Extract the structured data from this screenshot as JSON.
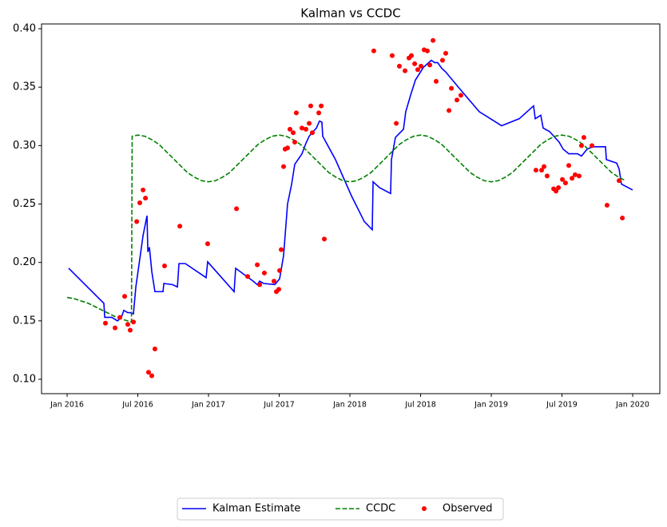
{
  "chart_data": {
    "type": "line",
    "title": "Kalman vs CCDC",
    "xlim": [
      2015.819,
      2020.192
    ],
    "ylim": [
      0.0877,
      0.4041
    ],
    "xticks": [
      {
        "value": 2016.0,
        "label": "Jan 2016"
      },
      {
        "value": 2016.5,
        "label": "Jul 2016"
      },
      {
        "value": 2017.0,
        "label": "Jan 2017"
      },
      {
        "value": 2017.5,
        "label": "Jul 2017"
      },
      {
        "value": 2018.0,
        "label": "Jan 2018"
      },
      {
        "value": 2018.5,
        "label": "Jul 2018"
      },
      {
        "value": 2019.0,
        "label": "Jan 2019"
      },
      {
        "value": 2019.5,
        "label": "Jul 2019"
      },
      {
        "value": 2020.0,
        "label": "Jan 2020"
      }
    ],
    "yticks": [
      {
        "value": 0.1,
        "label": "0.10"
      },
      0.15,
      {
        "value": 0.2,
        "label": "0.20"
      },
      0.25,
      {
        "value": 0.3,
        "label": "0.30"
      },
      0.35,
      {
        "value": 0.4,
        "label": "0.40"
      }
    ],
    "grid": false,
    "legend": "below",
    "series": [
      {
        "name": "Kalman Estimate",
        "kind": "line",
        "dash": "solid",
        "color": "#0000ff",
        "x": [
          2016.011,
          2016.26,
          2016.266,
          2016.316,
          2016.356,
          2016.384,
          2016.401,
          2016.429,
          2016.446,
          2016.469,
          2016.486,
          2016.514,
          2016.537,
          2016.565,
          2016.571,
          2016.582,
          2016.599,
          2016.621,
          2016.678,
          2016.684,
          2016.746,
          2016.78,
          2016.791,
          2016.836,
          2016.983,
          2016.994,
          2017.181,
          2017.192,
          2017.316,
          2017.345,
          2017.362,
          2017.39,
          2017.469,
          2017.503,
          2017.531,
          2017.559,
          2017.588,
          2017.61,
          2017.661,
          2017.689,
          2017.712,
          2017.74,
          2017.763,
          2017.785,
          2017.802,
          2017.808,
          2017.898,
          2018.011,
          2018.102,
          2018.158,
          2018.164,
          2018.209,
          2018.288,
          2018.294,
          2018.322,
          2018.379,
          2018.395,
          2018.429,
          2018.463,
          2018.52,
          2018.576,
          2018.599,
          2018.621,
          2018.65,
          2018.678,
          2018.774,
          2018.915,
          2019.073,
          2019.198,
          2019.299,
          2019.311,
          2019.35,
          2019.367,
          2019.412,
          2019.48,
          2019.508,
          2019.548,
          2019.61,
          2019.638,
          2019.678,
          2019.718,
          2019.808,
          2019.814,
          2019.887,
          2019.904,
          2019.921,
          2020.0
        ],
        "values": [
          0.195,
          0.165,
          0.153,
          0.153,
          0.15,
          0.153,
          0.159,
          0.157,
          0.157,
          0.156,
          0.179,
          0.203,
          0.223,
          0.24,
          0.209,
          0.213,
          0.192,
          0.175,
          0.175,
          0.182,
          0.181,
          0.179,
          0.199,
          0.199,
          0.187,
          0.2005,
          0.175,
          0.195,
          0.184,
          0.181,
          0.184,
          0.182,
          0.181,
          0.186,
          0.206,
          0.25,
          0.267,
          0.284,
          0.293,
          0.302,
          0.308,
          0.312,
          0.315,
          0.321,
          0.32,
          0.308,
          0.288,
          0.257,
          0.235,
          0.228,
          0.269,
          0.264,
          0.259,
          0.288,
          0.307,
          0.314,
          0.329,
          0.343,
          0.356,
          0.367,
          0.373,
          0.371,
          0.371,
          0.366,
          0.363,
          0.349,
          0.329,
          0.317,
          0.323,
          0.334,
          0.323,
          0.326,
          0.315,
          0.312,
          0.303,
          0.297,
          0.293,
          0.293,
          0.291,
          0.297,
          0.299,
          0.299,
          0.288,
          0.285,
          0.28,
          0.267,
          0.262
        ]
      },
      {
        "name": "CCDC",
        "kind": "line",
        "dash": "dashed",
        "color": "#008000",
        "x": [
          2016.0,
          2016.05,
          2016.1,
          2016.15,
          2016.2,
          2016.25,
          2016.3,
          2016.35,
          2016.4,
          2016.455,
          2016.46,
          2016.5,
          2016.55,
          2016.6,
          2016.65,
          2016.7,
          2016.75,
          2016.8,
          2016.85,
          2016.9,
          2016.95,
          2017.0,
          2017.05,
          2017.1,
          2017.15,
          2017.2,
          2017.25,
          2017.3,
          2017.35,
          2017.4,
          2017.45,
          2017.5,
          2017.55,
          2017.6,
          2017.65,
          2017.7,
          2017.75,
          2017.8,
          2017.85,
          2017.9,
          2017.95,
          2018.0,
          2018.05,
          2018.1,
          2018.15,
          2018.2,
          2018.25,
          2018.3,
          2018.35,
          2018.4,
          2018.45,
          2018.5,
          2018.55,
          2018.6,
          2018.65,
          2018.7,
          2018.75,
          2018.8,
          2018.85,
          2018.9,
          2018.95,
          2019.0,
          2019.05,
          2019.1,
          2019.15,
          2019.2,
          2019.25,
          2019.3,
          2019.35,
          2019.4,
          2019.45,
          2019.5,
          2019.55,
          2019.6,
          2019.65,
          2019.7,
          2019.75,
          2019.8,
          2019.85,
          2019.9,
          2019.95
        ],
        "values": [
          0.17,
          0.169,
          0.167,
          0.165,
          0.162,
          0.159,
          0.156,
          0.153,
          0.151,
          0.149,
          0.308,
          0.309,
          0.308,
          0.305,
          0.301,
          0.295,
          0.289,
          0.283,
          0.277,
          0.273,
          0.27,
          0.269,
          0.27,
          0.273,
          0.277,
          0.283,
          0.289,
          0.295,
          0.301,
          0.305,
          0.308,
          0.309,
          0.308,
          0.305,
          0.301,
          0.295,
          0.289,
          0.283,
          0.277,
          0.273,
          0.27,
          0.269,
          0.27,
          0.273,
          0.277,
          0.283,
          0.289,
          0.295,
          0.301,
          0.305,
          0.308,
          0.309,
          0.308,
          0.305,
          0.301,
          0.295,
          0.289,
          0.283,
          0.277,
          0.273,
          0.27,
          0.269,
          0.27,
          0.273,
          0.277,
          0.283,
          0.289,
          0.295,
          0.301,
          0.305,
          0.308,
          0.309,
          0.308,
          0.305,
          0.301,
          0.295,
          0.289,
          0.283,
          0.277,
          0.273,
          0.27
        ]
      },
      {
        "name": "Observed",
        "kind": "scatter",
        "color": "#ff0000",
        "x": [
          2016.271,
          2016.339,
          2016.373,
          2016.407,
          2016.429,
          2016.446,
          2016.469,
          2016.492,
          2016.514,
          2016.537,
          2016.554,
          2016.576,
          2016.599,
          2016.621,
          2016.689,
          2016.797,
          2016.994,
          2017.198,
          2017.277,
          2017.345,
          2017.362,
          2017.395,
          2017.463,
          2017.48,
          2017.497,
          2017.503,
          2017.514,
          2017.531,
          2017.542,
          2017.559,
          2017.576,
          2017.599,
          2017.61,
          2017.621,
          2017.661,
          2017.689,
          2017.712,
          2017.723,
          2017.734,
          2017.78,
          2017.797,
          2017.819,
          2018.169,
          2018.299,
          2018.328,
          2018.35,
          2018.39,
          2018.418,
          2018.435,
          2018.458,
          2018.48,
          2018.503,
          2018.525,
          2018.548,
          2018.565,
          2018.588,
          2018.61,
          2018.655,
          2018.678,
          2018.701,
          2018.718,
          2018.757,
          2018.785,
          2019.316,
          2019.356,
          2019.373,
          2019.395,
          2019.441,
          2019.458,
          2019.475,
          2019.503,
          2019.525,
          2019.548,
          2019.571,
          2019.593,
          2019.621,
          2019.638,
          2019.655,
          2019.712,
          2019.819,
          2019.904,
          2019.927
        ],
        "values": [
          0.148,
          0.144,
          0.153,
          0.171,
          0.147,
          0.142,
          0.149,
          0.235,
          0.251,
          0.262,
          0.255,
          0.106,
          0.103,
          0.126,
          0.197,
          0.231,
          0.216,
          0.246,
          0.188,
          0.198,
          0.181,
          0.191,
          0.184,
          0.175,
          0.177,
          0.193,
          0.211,
          0.282,
          0.297,
          0.298,
          0.314,
          0.311,
          0.303,
          0.328,
          0.315,
          0.314,
          0.319,
          0.334,
          0.311,
          0.328,
          0.334,
          0.22,
          0.381,
          0.377,
          0.319,
          0.368,
          0.364,
          0.375,
          0.377,
          0.37,
          0.365,
          0.368,
          0.382,
          0.381,
          0.369,
          0.39,
          0.355,
          0.373,
          0.379,
          0.33,
          0.349,
          0.339,
          0.343,
          0.279,
          0.279,
          0.282,
          0.274,
          0.263,
          0.261,
          0.264,
          0.271,
          0.268,
          0.283,
          0.272,
          0.275,
          0.274,
          0.3,
          0.307,
          0.3,
          0.249,
          0.27,
          0.238
        ]
      }
    ]
  }
}
